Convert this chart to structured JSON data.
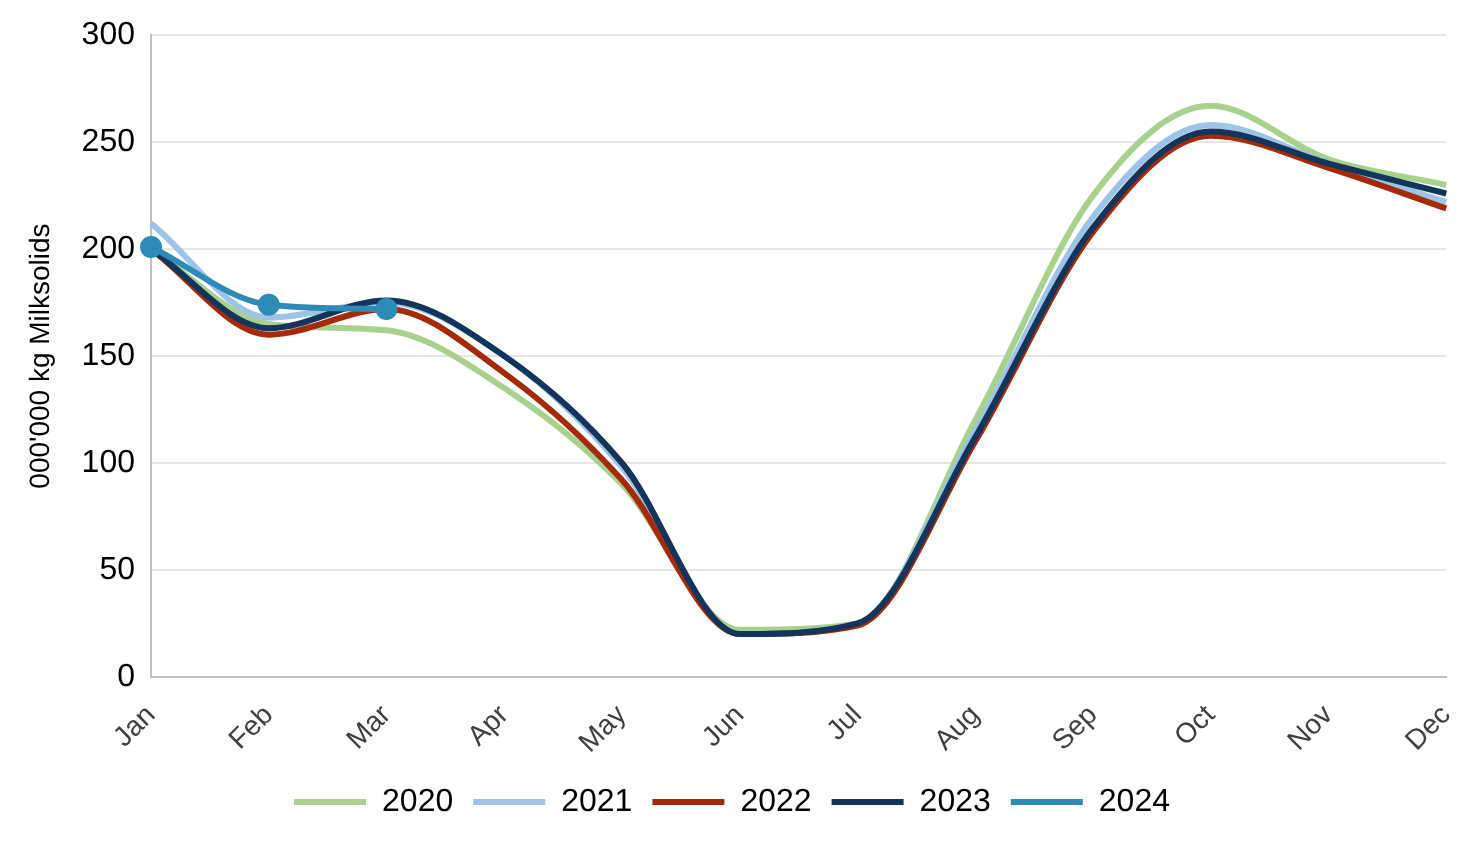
{
  "chart_data": {
    "type": "line",
    "ylabel": "000'000 kg Milksolids",
    "categories": [
      "Jan",
      "Feb",
      "Mar",
      "Apr",
      "May",
      "Jun",
      "Jul",
      "Aug",
      "Sep",
      "Oct",
      "Nov",
      "Dec"
    ],
    "series": [
      {
        "name": "2020",
        "color": "#a9d18e",
        "marker": "none",
        "values": [
          200,
          165,
          162,
          135,
          90,
          22,
          25,
          120,
          225,
          267,
          242,
          230
        ]
      },
      {
        "name": "2021",
        "color": "#9dc3e6",
        "marker": "none",
        "values": [
          212,
          168,
          175,
          150,
          98,
          20,
          25,
          115,
          215,
          258,
          240,
          222
        ]
      },
      {
        "name": "2022",
        "color": "#a52a0a",
        "marker": "none",
        "values": [
          200,
          160,
          172,
          142,
          92,
          20,
          24,
          110,
          208,
          253,
          238,
          219
        ]
      },
      {
        "name": "2023",
        "color": "#12355b",
        "marker": "none",
        "values": [
          200,
          163,
          176,
          150,
          100,
          20,
          25,
          112,
          210,
          255,
          240,
          226
        ]
      },
      {
        "name": "2024",
        "color": "#2e8bb8",
        "marker": "circle",
        "values": [
          201,
          174,
          172,
          null,
          null,
          null,
          null,
          null,
          null,
          null,
          null,
          null
        ]
      }
    ],
    "ylim": [
      0,
      300
    ],
    "yticks": [
      0,
      50,
      100,
      150,
      200,
      250,
      300
    ],
    "grid": "y",
    "legend": "bottom",
    "line_style": "solid"
  }
}
